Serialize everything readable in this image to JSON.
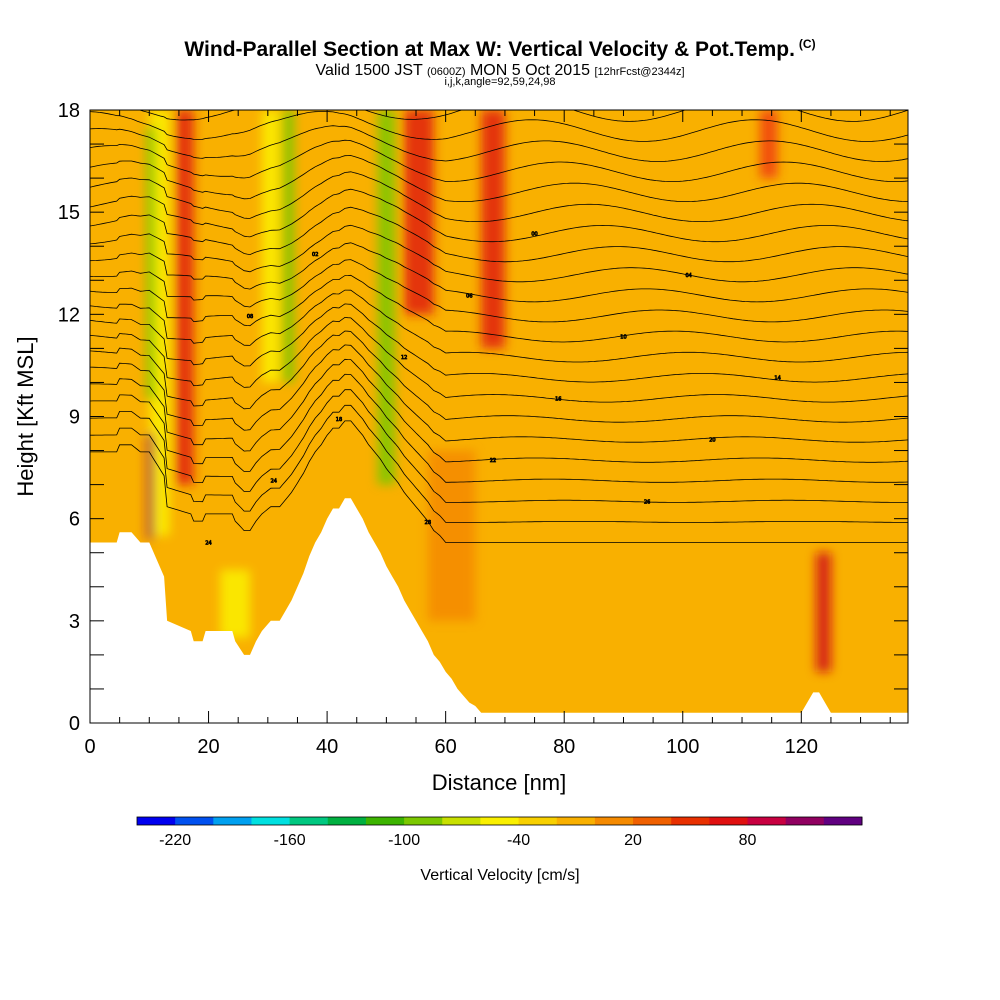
{
  "header": {
    "title": "Wind-Parallel Section at Max W: Vertical Velocity & Pot.Temp.",
    "copyright": "(C)",
    "valid_prefix": "Valid 1500 JST",
    "valid_utc": "(0600Z)",
    "valid_date": "MON 5 Oct 2015",
    "forecast": "[12hrFcst@2344z]",
    "indices": "i,j,k,angle=92,59,24,98"
  },
  "chart_data": {
    "type": "heatmap",
    "xlabel": "Distance [nm]",
    "ylabel": "Height [Kft MSL]",
    "xlim": [
      0,
      138
    ],
    "ylim": [
      0,
      18
    ],
    "x_ticks": [
      "0",
      "20",
      "40",
      "60",
      "80",
      "100",
      "120"
    ],
    "y_ticks": [
      "0",
      "3",
      "6",
      "9",
      "12",
      "15",
      "18"
    ],
    "background_value_color": "#F9B000",
    "terrain_profile": {
      "x": [
        0,
        4.5,
        5,
        7,
        8.5,
        10,
        11,
        12.5,
        13,
        17,
        17.5,
        19,
        19.5,
        24,
        24.5,
        26,
        27,
        28,
        29,
        30.5,
        31,
        32,
        33,
        34,
        35,
        36,
        37,
        38,
        39,
        40,
        41,
        42,
        43,
        44,
        45,
        46,
        47,
        48,
        49,
        50,
        51,
        52,
        53,
        54,
        55,
        56,
        57,
        58,
        59,
        60,
        61,
        62,
        63,
        64,
        65,
        66,
        67,
        68,
        69,
        70,
        71,
        72,
        120,
        121,
        122,
        123,
        124,
        125,
        126,
        127,
        138
      ],
      "y": [
        5.3,
        5.3,
        5.6,
        5.6,
        5.3,
        5.3,
        4.9,
        4.3,
        3.0,
        2.7,
        2.4,
        2.4,
        2.7,
        2.7,
        2.4,
        2.0,
        2.0,
        2.4,
        2.7,
        3.0,
        3.0,
        3.0,
        3.3,
        3.6,
        4.0,
        4.4,
        4.9,
        5.3,
        5.6,
        6.0,
        6.3,
        6.3,
        6.6,
        6.6,
        6.3,
        6.0,
        5.6,
        5.3,
        5.0,
        4.6,
        4.3,
        4.0,
        3.6,
        3.3,
        3.0,
        2.7,
        2.4,
        2.0,
        1.8,
        1.5,
        1.3,
        1.0,
        0.8,
        0.6,
        0.5,
        0.3,
        0.3,
        0.3,
        0.3,
        0.3,
        0.3,
        0.3,
        0.3,
        0.6,
        0.9,
        0.9,
        0.6,
        0.3,
        0.3,
        0.3,
        0.3
      ]
    },
    "velocity_bands": [
      {
        "x": 10,
        "width": 3.5,
        "y0": 5.5,
        "y1": 18,
        "value": -60,
        "color": "#FAF000"
      },
      {
        "x": 9.5,
        "width": 1.5,
        "y0": 9.5,
        "y1": 17.5,
        "value": -100,
        "color": "#7BC800"
      },
      {
        "x": 9.6,
        "width": 1.2,
        "y0": 5.4,
        "y1": 8.5,
        "value": 90,
        "color": "#A00050"
      },
      {
        "x": 14.5,
        "width": 3,
        "y0": 7,
        "y1": 18,
        "value": 60,
        "color": "#E02010"
      },
      {
        "x": 29,
        "width": 3,
        "y0": 10,
        "y1": 18,
        "value": -60,
        "color": "#FAF000"
      },
      {
        "x": 32.5,
        "width": 2,
        "y0": 10,
        "y1": 18,
        "value": -100,
        "color": "#7BC800"
      },
      {
        "x": 48.5,
        "width": 3,
        "y0": 7,
        "y1": 18,
        "value": -100,
        "color": "#7BC800"
      },
      {
        "x": 53,
        "width": 5,
        "y0": 12,
        "y1": 18,
        "value": 70,
        "color": "#E02010"
      },
      {
        "x": 66,
        "width": 4,
        "y0": 11,
        "y1": 18,
        "value": 60,
        "color": "#E02010"
      },
      {
        "x": 122.5,
        "width": 2.5,
        "y0": 1.5,
        "y1": 5,
        "value": 80,
        "color": "#D0101A"
      },
      {
        "x": 113,
        "width": 3,
        "y0": 16,
        "y1": 18,
        "value": 40,
        "color": "#F04010"
      },
      {
        "x": 57,
        "width": 8,
        "y0": 3,
        "y1": 8,
        "value": 20,
        "color": "#F58A00"
      },
      {
        "x": 22,
        "width": 5,
        "y0": 2.5,
        "y1": 4.5,
        "value": -40,
        "color": "#FAF000"
      }
    ],
    "isentropes_count": 22,
    "contour_labels": [
      "24",
      "28",
      "26",
      "24",
      "22",
      "20",
      "18",
      "16",
      "14",
      "12",
      "10",
      "08",
      "06",
      "04",
      "02",
      "00"
    ],
    "colorbar": {
      "title": "Vertical Velocity [cm/s]",
      "tick_labels": [
        "-220",
        "-160",
        "-100",
        "-40",
        "20",
        "80"
      ],
      "tick_values": [
        -220,
        -160,
        -100,
        -40,
        20,
        80
      ],
      "levels_min": -240,
      "levels_step": 20,
      "colors": [
        "#0000F0",
        "#0050F0",
        "#00A0F0",
        "#00E0E0",
        "#00C880",
        "#00B040",
        "#3CB400",
        "#7BC800",
        "#C8E000",
        "#FAF000",
        "#F8D000",
        "#F9B000",
        "#F58A00",
        "#F06000",
        "#E83000",
        "#E01010",
        "#C80040",
        "#900060",
        "#600080"
      ]
    }
  }
}
